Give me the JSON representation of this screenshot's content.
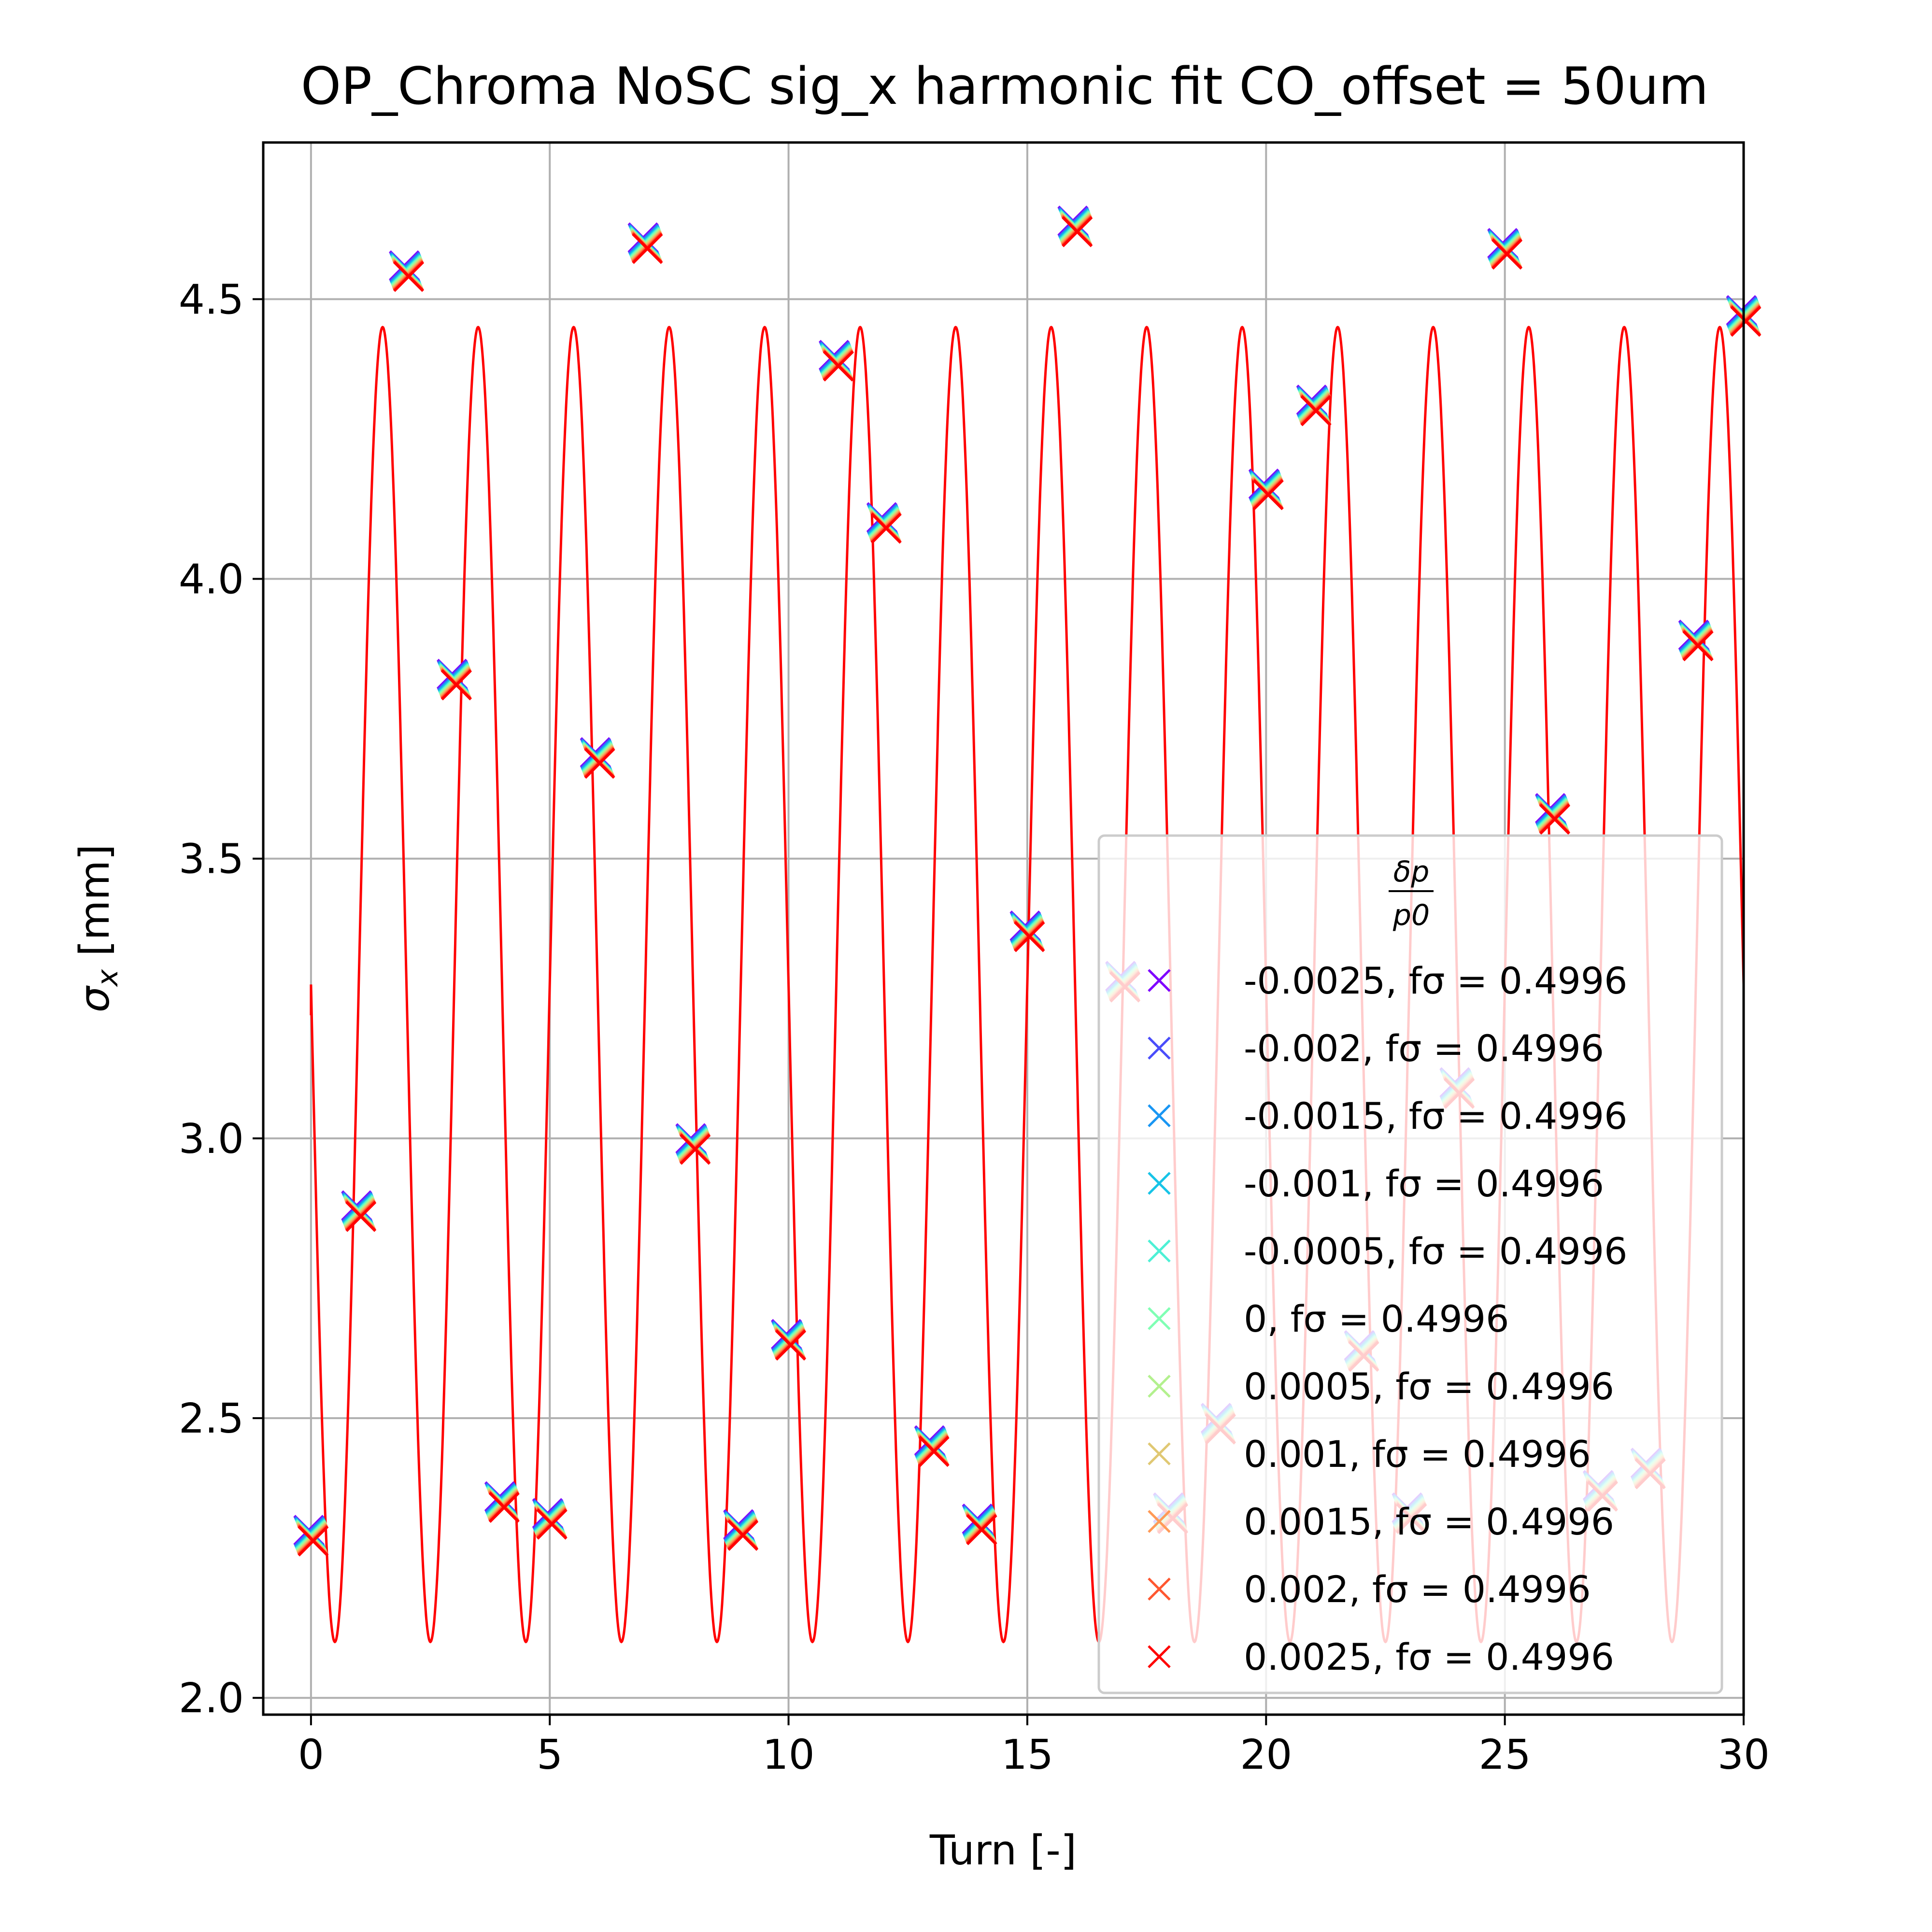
{
  "chart_data": {
    "type": "scatter",
    "title": "OP_Chroma NoSC sig_x harmonic fit CO_offset = 50um",
    "xlabel": "Turn [-]",
    "ylabel": "σx [mm]",
    "xlim": [
      -1,
      30
    ],
    "ylim": [
      1.97,
      4.78
    ],
    "xticks": [
      "0",
      "5",
      "10",
      "15",
      "20",
      "25",
      "30"
    ],
    "yticks": [
      "2.0",
      "2.5",
      "3.0",
      "3.5",
      "4.0",
      "4.5"
    ],
    "grid": true,
    "legend": {
      "placement": "lower right",
      "title_num": "δp",
      "title_den": "p0",
      "entries": [
        {
          "label": "-0.0025, fσ = 0.4996",
          "color": "#7f00ff"
        },
        {
          "label": "-0.002, fσ = 0.4996",
          "color": "#4a4dfb"
        },
        {
          "label": "-0.0015, fσ = 0.4996",
          "color": "#1996f3"
        },
        {
          "label": "-0.001, fσ = 0.4996",
          "color": "#17c4e7"
        },
        {
          "label": "-0.0005, fσ = 0.4996",
          "color": "#4df0d5"
        },
        {
          "label": "0, fσ = 0.4996",
          "color": "#80ffb4"
        },
        {
          "label": "0.0005, fσ = 0.4996",
          "color": "#b3f08e"
        },
        {
          "label": "0.001, fσ = 0.4996",
          "color": "#e0c873"
        },
        {
          "label": "0.0015, fσ = 0.4996",
          "color": "#ff9a57"
        },
        {
          "label": "0.002, fσ = 0.4996",
          "color": "#ff5730"
        },
        {
          "label": "0.0025, fσ = 0.4996",
          "color": "#ff0000"
        }
      ]
    },
    "fit_curve": {
      "color": "#ff0000",
      "x_range": [
        0,
        30
      ],
      "amplitude": 1.175,
      "offset": 3.275,
      "period": 2.0,
      "phase_peak_x": 1.5,
      "start_y": 3.22
    },
    "series": [
      {
        "x": [
          0,
          1,
          2,
          3,
          4,
          5,
          6,
          7,
          8,
          9,
          10,
          11,
          12,
          13,
          14,
          15,
          16,
          17,
          18,
          19,
          20,
          21,
          22,
          23,
          24,
          25,
          26,
          27,
          28,
          29,
          30
        ],
        "y": [
          2.29,
          2.87,
          4.55,
          3.82,
          2.35,
          2.32,
          3.68,
          4.6,
          2.99,
          2.3,
          2.64,
          4.39,
          4.1,
          2.45,
          2.31,
          3.37,
          4.63,
          3.28,
          2.33,
          2.49,
          4.16,
          4.31,
          2.62,
          2.33,
          3.09,
          4.59,
          3.58,
          2.37,
          2.41,
          3.89,
          4.47
        ]
      }
    ]
  }
}
